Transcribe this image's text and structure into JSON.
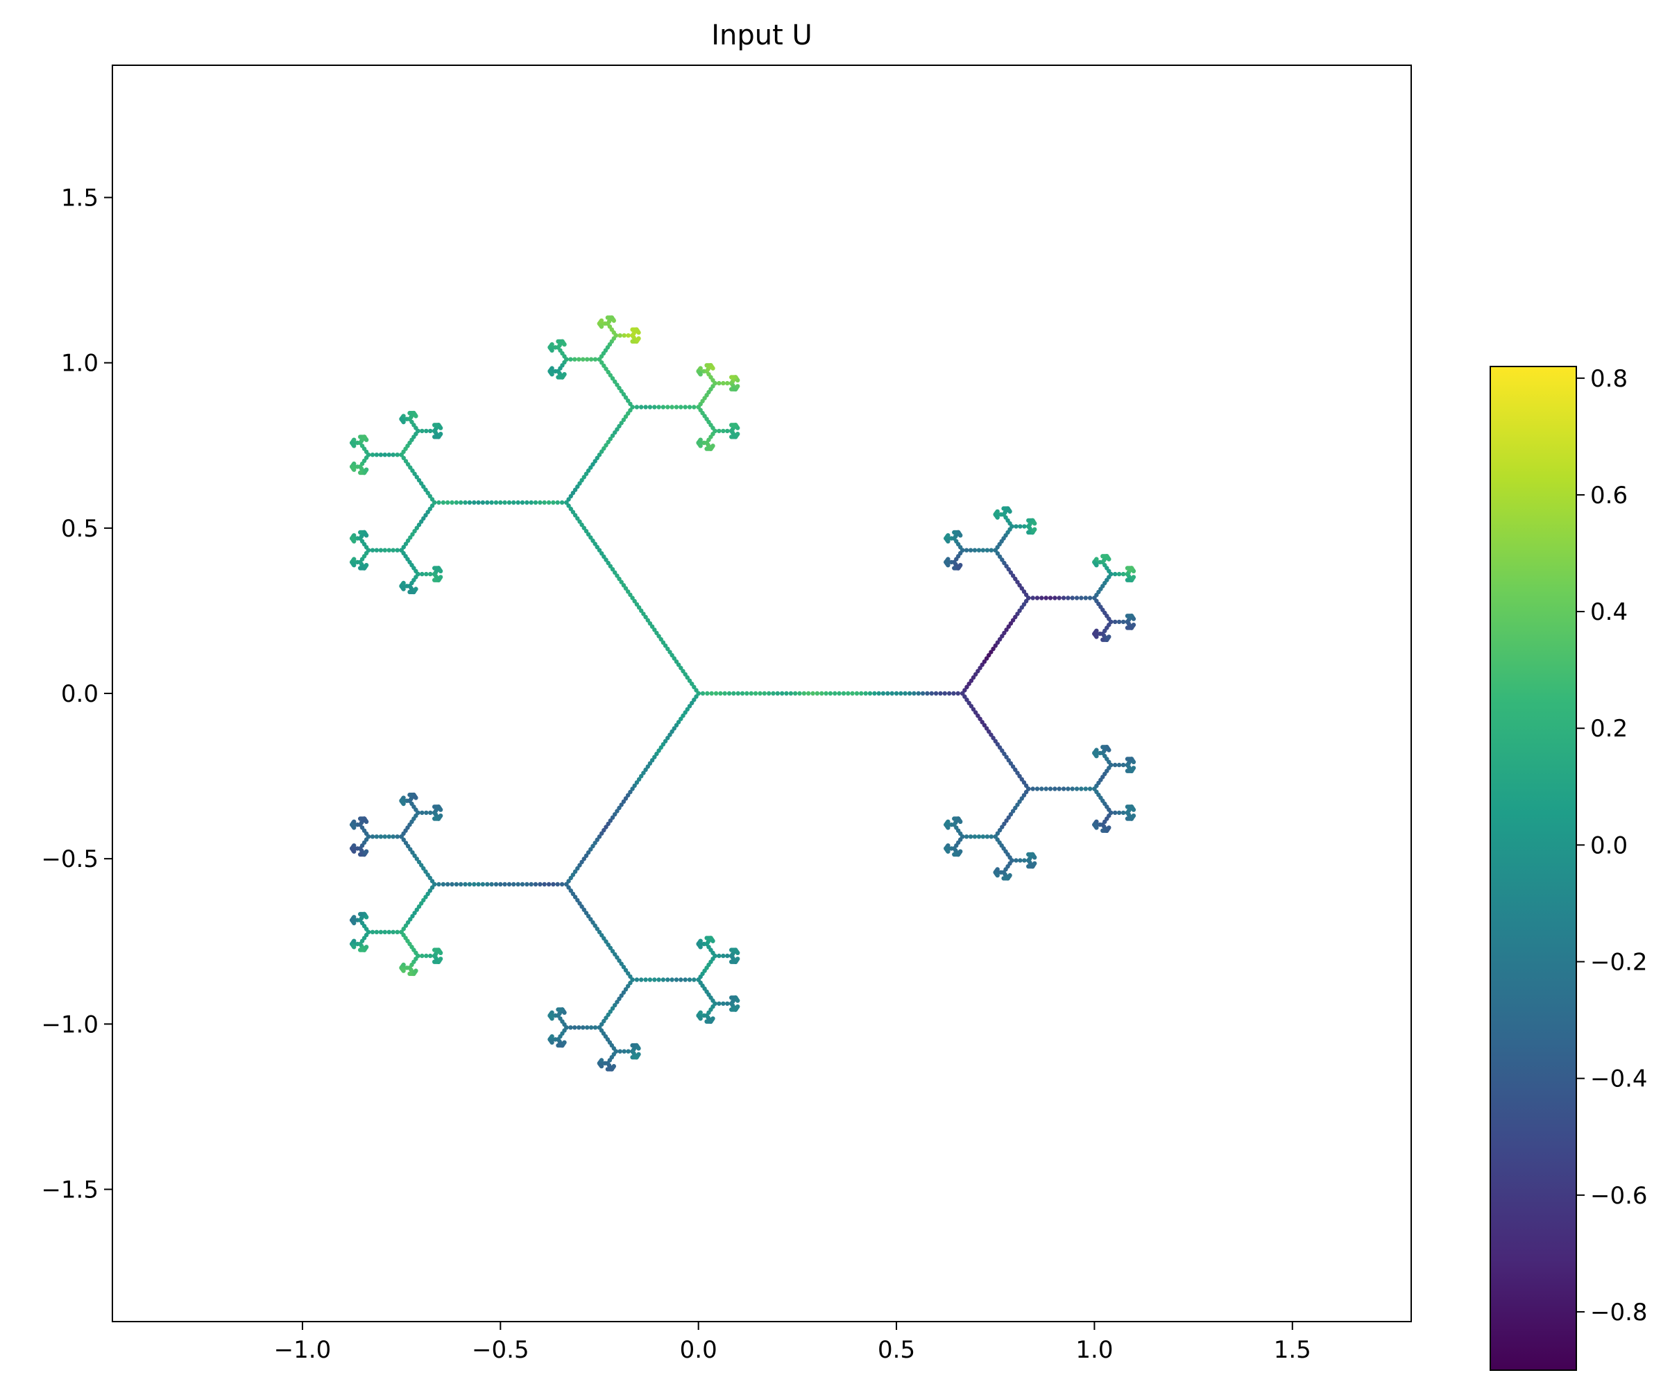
{
  "chart_data": {
    "type": "scatter",
    "title": "Input U",
    "xlabel": "",
    "ylabel": "",
    "xlim": [
      -1.48,
      1.8
    ],
    "ylim": [
      -1.9,
      1.9
    ],
    "xticks": [
      -1.0,
      -0.5,
      0.0,
      0.5,
      1.0,
      1.5
    ],
    "xtick_labels": [
      "−1.0",
      "−0.5",
      "0.0",
      "0.5",
      "1.0",
      "1.5"
    ],
    "yticks": [
      -1.5,
      -1.0,
      -0.5,
      0.0,
      0.5,
      1.0,
      1.5
    ],
    "ytick_labels": [
      "−1.5",
      "−1.0",
      "−0.5",
      "0.0",
      "0.5",
      "1.0",
      "1.5"
    ],
    "grid": false,
    "structure": {
      "kind": "fractal-tree",
      "root": [
        0.0,
        0.0
      ],
      "first_branch_length": 0.6667,
      "scale_per_level": 0.5,
      "levels": 6,
      "branching": 3
    },
    "regions": [
      {
        "center": [
          -0.5,
          1.45
        ],
        "value": 0.7
      },
      {
        "center": [
          0.0,
          1.3
        ],
        "value": 0.6
      },
      {
        "center": [
          -1.1,
          1.0
        ],
        "value": 0.3
      },
      {
        "center": [
          -0.55,
          0.9
        ],
        "value": 0.1
      },
      {
        "center": [
          -0.3,
          0.55
        ],
        "value": 0.1
      },
      {
        "center": [
          0.05,
          0.42
        ],
        "value": 0.3
      },
      {
        "center": [
          -0.35,
          0.1
        ],
        "value": 0.05
      },
      {
        "center": [
          0.3,
          0.15
        ],
        "value": 0.25
      },
      {
        "center": [
          0.15,
          -0.45
        ],
        "value": 0.15
      },
      {
        "center": [
          -0.35,
          -0.4
        ],
        "value": -0.35
      },
      {
        "center": [
          -1.1,
          -0.75
        ],
        "value": -0.7
      },
      {
        "center": [
          -0.8,
          -0.9
        ],
        "value": 0.25
      },
      {
        "center": [
          -0.35,
          -1.3
        ],
        "value": -0.3
      },
      {
        "center": [
          0.05,
          -1.3
        ],
        "value": -0.1
      },
      {
        "center": [
          0.8,
          0.1
        ],
        "value": -0.7
      },
      {
        "center": [
          1.15,
          0.6
        ],
        "value": 0.4
      },
      {
        "center": [
          1.5,
          0.35
        ],
        "value": -0.5
      },
      {
        "center": [
          1.1,
          -0.2
        ],
        "value": -0.3
      },
      {
        "center": [
          1.3,
          -0.5
        ],
        "value": -0.4
      },
      {
        "center": [
          1.05,
          -0.75
        ],
        "value": -0.25
      }
    ],
    "colorbar": {
      "cmap": "viridis",
      "vmin": -0.9,
      "vmax": 0.82,
      "ticks": [
        -0.8,
        -0.6,
        -0.4,
        -0.2,
        0.0,
        0.2,
        0.4,
        0.6,
        0.8
      ],
      "tick_labels": [
        "−0.8",
        "−0.6",
        "−0.4",
        "−0.2",
        "0.0",
        "0.2",
        "0.4",
        "0.6",
        "0.8"
      ],
      "colors": [
        "#440154",
        "#482878",
        "#3e4989",
        "#31688e",
        "#26828e",
        "#1f9e89",
        "#35b779",
        "#6ece58",
        "#b5de2b",
        "#fde725"
      ]
    }
  }
}
